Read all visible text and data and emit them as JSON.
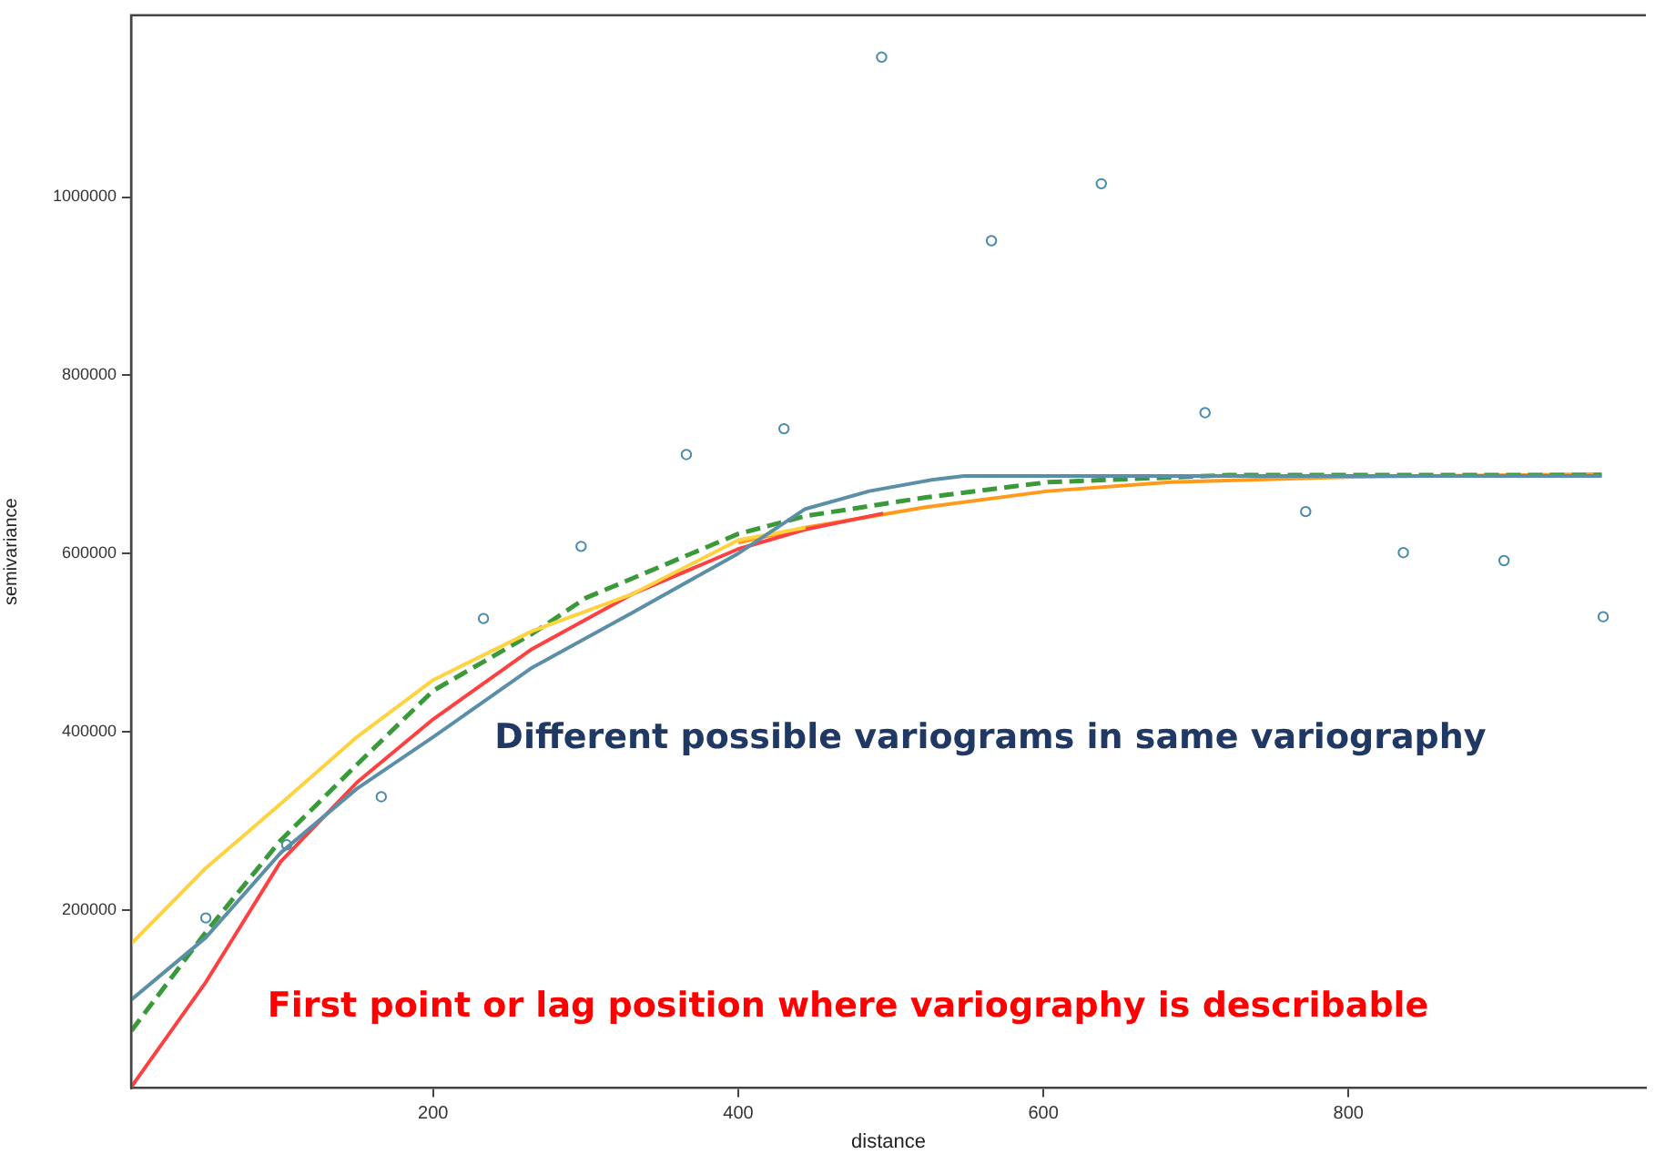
{
  "chart_data": {
    "type": "scatter",
    "xlabel": "distance",
    "ylabel": "semivariance",
    "xlim": [
      2,
      995
    ],
    "ylim": [
      0,
      1204000
    ],
    "xticks": [
      200,
      400,
      600,
      800
    ],
    "yticks": [
      200000,
      400000,
      600000,
      800000,
      1000000
    ],
    "grid": false,
    "legend": false,
    "annotations": [
      "Different possible variograms in same variography",
      "First point or lag position where variography is describable"
    ],
    "series": [
      {
        "type": "line",
        "color": "#5b8fa8",
        "line_style": "solid",
        "marker": "none",
        "x": [
          2,
          51,
          100,
          150,
          200,
          265,
          330,
          400,
          444,
          486,
          528,
          548,
          600,
          700,
          800,
          966
        ],
        "values": [
          99000,
          169000,
          264000,
          336000,
          394000,
          472000,
          533000,
          600000,
          650000,
          670000,
          683000,
          687000,
          687000,
          687000,
          687000,
          687000
        ]
      },
      {
        "type": "line",
        "color": "#ffd23f",
        "line_style": "solid",
        "marker": "none",
        "x": [
          2,
          51,
          100,
          150,
          200,
          265,
          330,
          400,
          444
        ],
        "values": [
          162000,
          247000,
          319000,
          394000,
          458000,
          513000,
          554000,
          615000,
          629000
        ]
      },
      {
        "type": "line",
        "color": "#ff4040",
        "line_style": "solid",
        "marker": "none",
        "x": [
          2,
          51,
          100,
          150,
          200,
          265,
          330,
          400,
          444,
          495
        ],
        "values": [
          1000,
          119000,
          254000,
          343000,
          414000,
          493000,
          554000,
          605000,
          627000,
          645000
        ]
      },
      {
        "type": "line",
        "color": "#3a9a3a",
        "line_style": "dashed",
        "marker": "none",
        "x": [
          2,
          51,
          100,
          150,
          200,
          265,
          300,
          400,
          444,
          523,
          603,
          722,
          966
        ],
        "values": [
          64000,
          175000,
          278000,
          363000,
          446000,
          510000,
          550000,
          622000,
          642000,
          663000,
          680000,
          688000,
          688000
        ]
      },
      {
        "type": "line",
        "color": "#ff9a1a",
        "line_style": "solid",
        "marker": "none",
        "x": [
          400,
          444,
          523,
          603,
          683,
          803,
          966
        ],
        "values": [
          612000,
          629000,
          652000,
          670000,
          680000,
          686000,
          689000
        ]
      },
      {
        "type": "scatter",
        "color": "#4a8aaa",
        "marker": "circle",
        "x": [
          51,
          104,
          166,
          233,
          297,
          366,
          430,
          494,
          566,
          638,
          706,
          772,
          836,
          902,
          967
        ],
        "values": [
          191000,
          273000,
          327000,
          527000,
          608000,
          711000,
          740000,
          1157000,
          951000,
          1015000,
          758000,
          647000,
          601000,
          592000,
          529000
        ]
      }
    ]
  }
}
